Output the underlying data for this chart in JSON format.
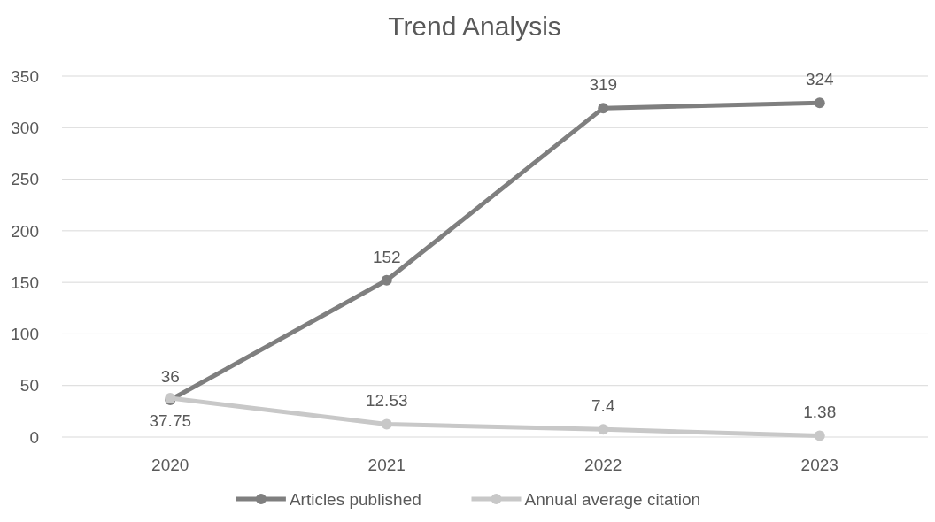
{
  "chart_data": {
    "type": "line",
    "title": "Trend Analysis",
    "categories": [
      "2020",
      "2021",
      "2022",
      "2023"
    ],
    "series": [
      {
        "name": "Articles published",
        "color": "#7f7f7f",
        "values": [
          36,
          152,
          319,
          324
        ]
      },
      {
        "name": "Annual average citation",
        "color": "#c8c8c8",
        "values": [
          37.75,
          12.53,
          7.4,
          1.38
        ]
      }
    ],
    "ylim": [
      0,
      350
    ],
    "yticks": [
      0,
      50,
      100,
      150,
      200,
      250,
      300,
      350
    ],
    "grid": "y",
    "legend": "bottom",
    "marker": "circle",
    "line_style": "solid",
    "data_labels": true
  }
}
